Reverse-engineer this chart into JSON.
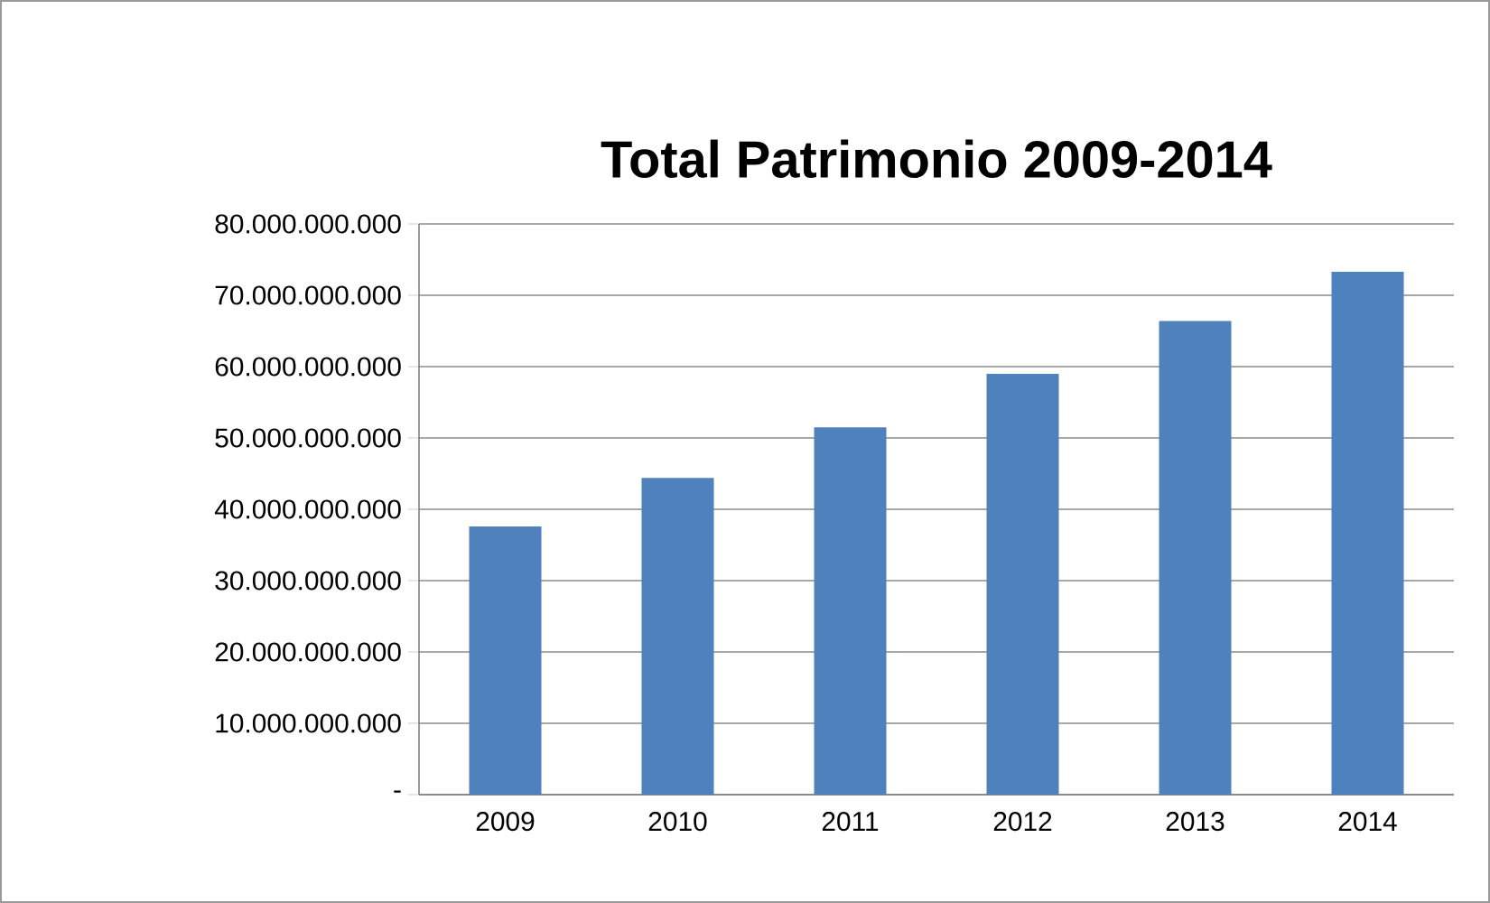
{
  "chart_data": {
    "type": "bar",
    "title": "Total Patrimonio 2009-2014",
    "categories": [
      "2009",
      "2010",
      "2011",
      "2012",
      "2013",
      "2014"
    ],
    "values": [
      37600000000,
      44400000000,
      51500000000,
      59000000000,
      66400000000,
      73300000000
    ],
    "color": "#4f81bd",
    "ylim": [
      0,
      80000000000
    ],
    "yticks": [
      {
        "value": 0,
        "label": "-"
      },
      {
        "value": 10000000000,
        "label": "10.000.000.000"
      },
      {
        "value": 20000000000,
        "label": "20.000.000.000"
      },
      {
        "value": 30000000000,
        "label": "30.000.000.000"
      },
      {
        "value": 40000000000,
        "label": "40.000.000.000"
      },
      {
        "value": 50000000000,
        "label": "50.000.000.000"
      },
      {
        "value": 60000000000,
        "label": "60.000.000.000"
      },
      {
        "value": 70000000000,
        "label": "70.000.000.000"
      },
      {
        "value": 80000000000,
        "label": "80.000.000.000"
      }
    ],
    "grid": "y"
  }
}
